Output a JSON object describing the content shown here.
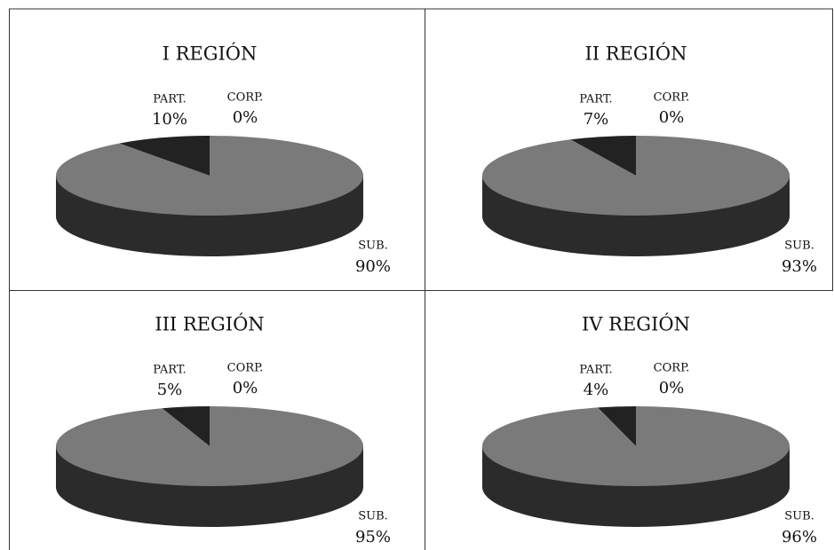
{
  "chart_data": [
    {
      "type": "pie",
      "title": "I REGIÓN",
      "categories": [
        "PART.",
        "CORP.",
        "SUB."
      ],
      "values": [
        10,
        0,
        90
      ],
      "value_labels": [
        "10%",
        "0%",
        "90%"
      ],
      "colors": [
        "#222222",
        "#555555",
        "#7a7a7a"
      ]
    },
    {
      "type": "pie",
      "title": "II REGIÓN",
      "categories": [
        "PART.",
        "CORP.",
        "SUB."
      ],
      "values": [
        7,
        0,
        93
      ],
      "value_labels": [
        "7%",
        "0%",
        "93%"
      ],
      "colors": [
        "#222222",
        "#555555",
        "#7a7a7a"
      ]
    },
    {
      "type": "pie",
      "title": "III REGIÓN",
      "categories": [
        "PART.",
        "CORP.",
        "SUB."
      ],
      "values": [
        5,
        0,
        95
      ],
      "value_labels": [
        "5%",
        "0%",
        "95%"
      ],
      "colors": [
        "#222222",
        "#555555",
        "#7a7a7a"
      ]
    },
    {
      "type": "pie",
      "title": "IV REGIÓN",
      "categories": [
        "PART.",
        "CORP.",
        "SUB."
      ],
      "values": [
        4,
        0,
        96
      ],
      "value_labels": [
        "4%",
        "0%",
        "96%"
      ],
      "colors": [
        "#222222",
        "#555555",
        "#7a7a7a"
      ]
    }
  ]
}
